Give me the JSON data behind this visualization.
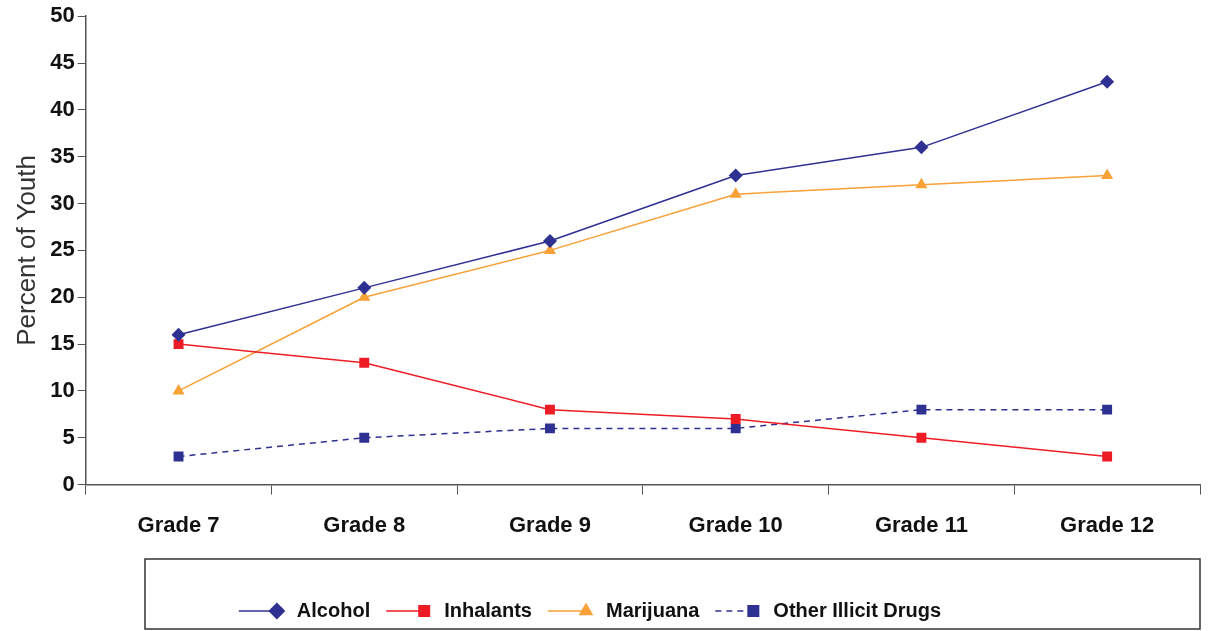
{
  "chart_data": {
    "type": "line",
    "ylabel": "Percent of Youth",
    "categories": [
      "Grade 7",
      "Grade 8",
      "Grade 9",
      "Grade 10",
      "Grade 11",
      "Grade 12"
    ],
    "series": [
      {
        "name": "Alcohol",
        "color": "#2e3192",
        "marker": "diamond",
        "line_style": "solid",
        "values": [
          16,
          21,
          26,
          33,
          36,
          43
        ]
      },
      {
        "name": "Inhalants",
        "color": "#ed1c24",
        "marker": "square",
        "line_style": "solid",
        "values": [
          15,
          13,
          8,
          7,
          5,
          3
        ]
      },
      {
        "name": "Marijuana",
        "color": "#f7a136",
        "marker": "triangle",
        "line_style": "solid",
        "values": [
          10,
          20,
          25,
          31,
          32,
          33
        ]
      },
      {
        "name": "Other Illicit Drugs",
        "color": "#2e3192",
        "marker": "square",
        "line_style": "dashed",
        "values": [
          3,
          5,
          6,
          6,
          8,
          8
        ]
      }
    ],
    "ylim": [
      0,
      50
    ],
    "yticks": [
      0,
      5,
      10,
      15,
      20,
      25,
      30,
      35,
      40,
      45,
      50
    ],
    "grid": false,
    "legend": "bottom"
  }
}
